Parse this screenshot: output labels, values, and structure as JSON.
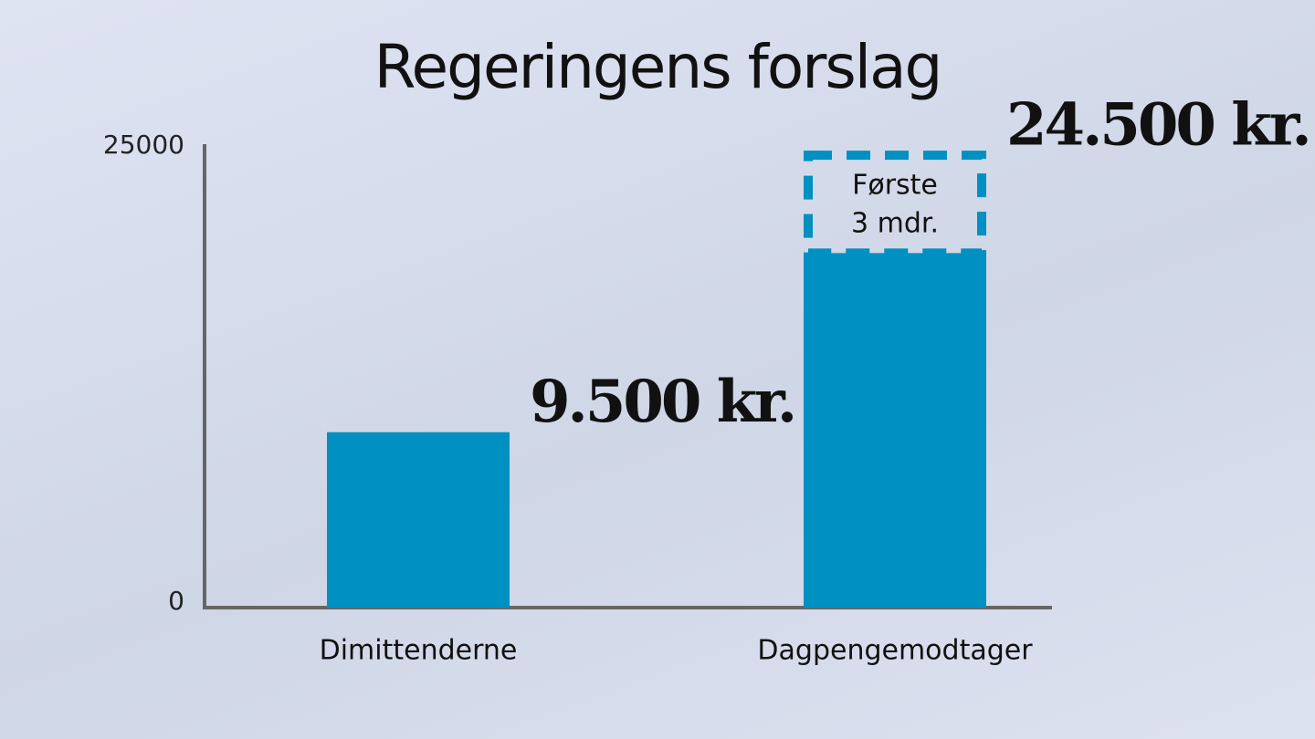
{
  "chart_data": {
    "type": "bar",
    "title": "Regeringens forslag",
    "categories": [
      "Dimittenderne",
      "Dagpengemodtager"
    ],
    "values": [
      9500,
      24500
    ],
    "value_labels": [
      "9.500 kr.",
      "24.500 kr."
    ],
    "solid_values": [
      9500,
      19200
    ],
    "annotation": [
      "Første",
      "3 mdr."
    ],
    "color": "#0090c2",
    "ylim": [
      0,
      25000
    ],
    "yticks": [
      0,
      25000
    ],
    "grid": false
  }
}
